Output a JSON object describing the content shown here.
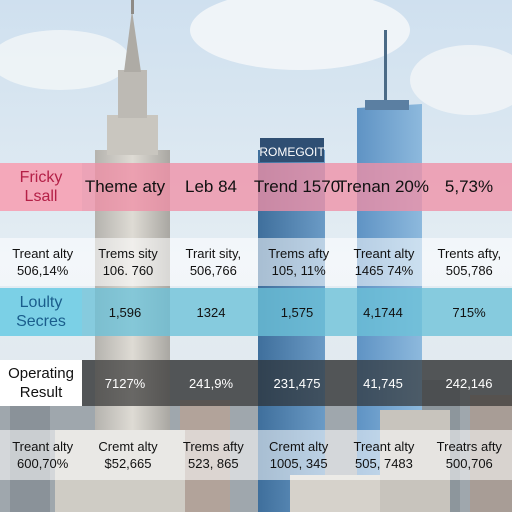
{
  "skyline": {
    "sign_text": "ROMEGOIT"
  },
  "rows": [
    {
      "kind": "header",
      "label": [
        "Fricky",
        "Lsall"
      ],
      "cells": [
        "Theme aty",
        "Leb 84",
        "Trend 1570",
        "Trenan 20%",
        "5,73%"
      ]
    },
    {
      "kind": "plain",
      "cells": [
        [
          "Treant alty",
          "506,14%"
        ],
        [
          "Trems sity",
          "106. 760"
        ],
        [
          "Trarit sity,",
          "506,766"
        ],
        [
          "Trems afty",
          "105, 11%"
        ],
        [
          "Treant alty",
          "1465 74%"
        ],
        [
          "Trents afty,",
          "505,786"
        ]
      ]
    },
    {
      "kind": "band",
      "label": [
        "Loulty",
        "Secres"
      ],
      "cells": [
        "1,596",
        "1324",
        "1,575",
        "4,1744",
        "715%"
      ]
    },
    {
      "kind": "dark",
      "label": [
        "Operating",
        "Result"
      ],
      "cells": [
        "7127%",
        "241,9%",
        "231,475",
        "41,745",
        "242,146"
      ]
    },
    {
      "kind": "plain",
      "cells": [
        [
          "Treant alty",
          "600,70%"
        ],
        [
          "Cremt alty",
          "$52,665"
        ],
        [
          "Trems afty",
          "523, 865"
        ],
        [
          "Cremt alty",
          "1005, 345"
        ],
        [
          "Treant alty",
          "505, 7483"
        ],
        [
          "Treatrs afty",
          "500,706"
        ]
      ]
    }
  ]
}
